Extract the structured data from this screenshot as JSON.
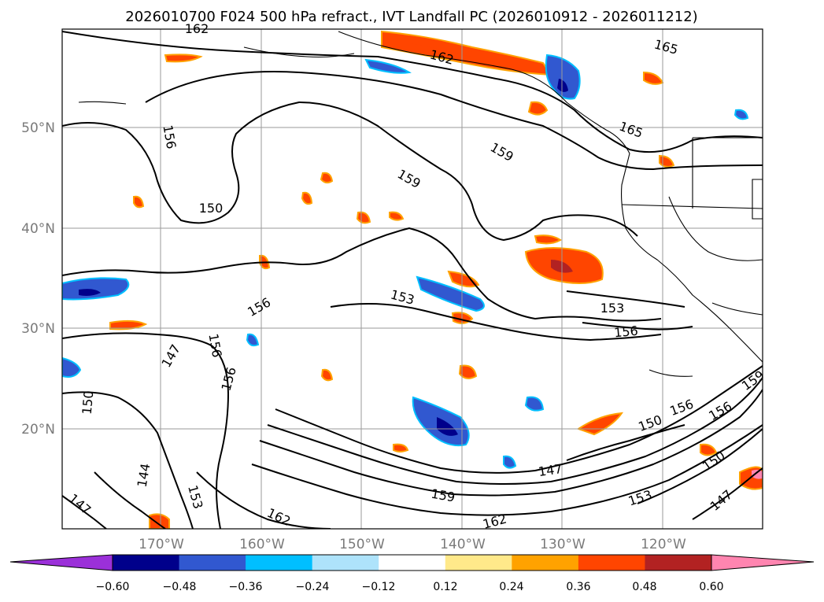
{
  "title": "2026010700 F024 500 hPa refract., IVT Landfall PC (2026010912 - 2026011212)",
  "lat_labels": [
    "50°N",
    "40°N",
    "30°N",
    "20°N"
  ],
  "lon_labels": [
    "170°W",
    "160°W",
    "150°W",
    "140°W",
    "130°W",
    "120°W"
  ],
  "colorbar": {
    "ticks": [
      "−0.60",
      "−0.48",
      "−0.36",
      "−0.24",
      "−0.12",
      "0.12",
      "0.24",
      "0.36",
      "0.48",
      "0.60"
    ],
    "colors": [
      "#9b30d9",
      "#00008b",
      "#3158d0",
      "#00bfff",
      "#aee3fb",
      "#ffffff",
      "#ffe98a",
      "#ffa200",
      "#ff4500",
      "#b22222",
      "#ff85b0"
    ]
  },
  "contour_labels": [
    "162",
    "162",
    "165",
    "165",
    "156",
    "159",
    "159",
    "153",
    "153",
    "156",
    "156",
    "147",
    "150",
    "156",
    "150",
    "156",
    "156",
    "156",
    "150",
    "144",
    "147",
    "153",
    "162",
    "159",
    "147",
    "162",
    "153",
    "150",
    "147",
    "159"
  ],
  "colors": {
    "contour": "#000000",
    "grid": "#9a9a9a",
    "axis_text": "#7a7a7a"
  }
}
